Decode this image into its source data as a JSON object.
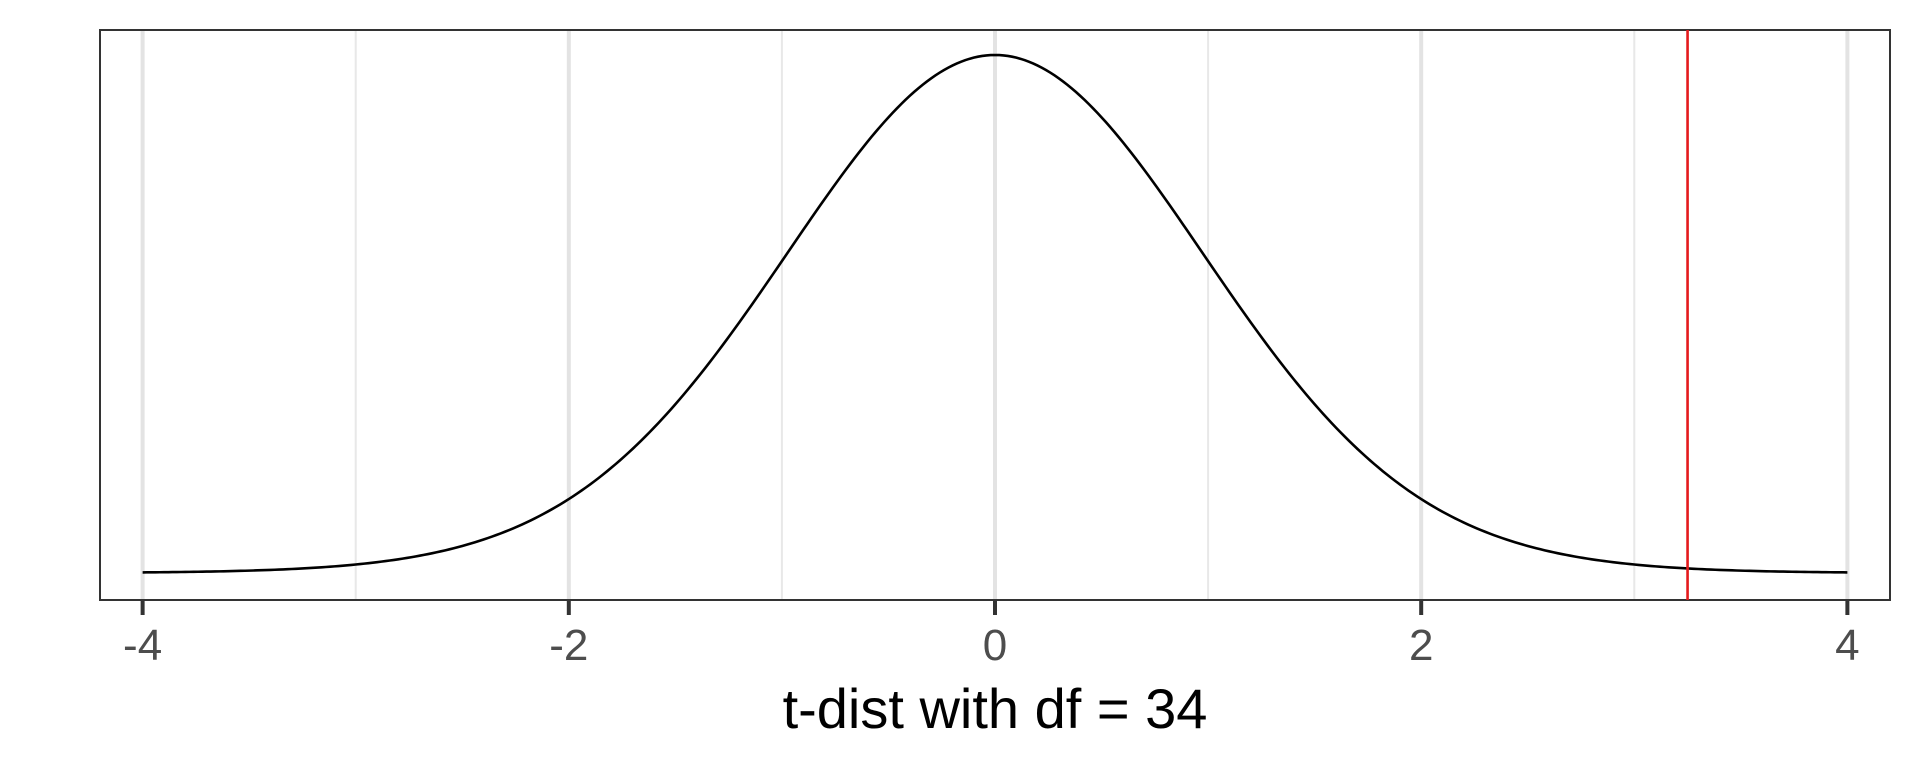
{
  "chart_data": {
    "type": "line",
    "distribution": "t",
    "df": 34,
    "xlabel": "t-dist with df = 34",
    "ylabel": "",
    "xlim": [
      -4.2,
      4.2
    ],
    "x_range": [
      -4,
      4
    ],
    "x_major_ticks": [
      -4,
      -2,
      0,
      2,
      4
    ],
    "x_tick_labels": [
      "-4",
      "-2",
      "0",
      "2",
      "4"
    ],
    "x_minor_grid": [
      -3,
      -1,
      1,
      3
    ],
    "y_axis_shown": false,
    "grid": "vertical",
    "series": [
      {
        "type": "density-curve",
        "color": "#000000"
      }
    ],
    "vline": {
      "x": 3.25,
      "color": "#e41a1c"
    }
  }
}
